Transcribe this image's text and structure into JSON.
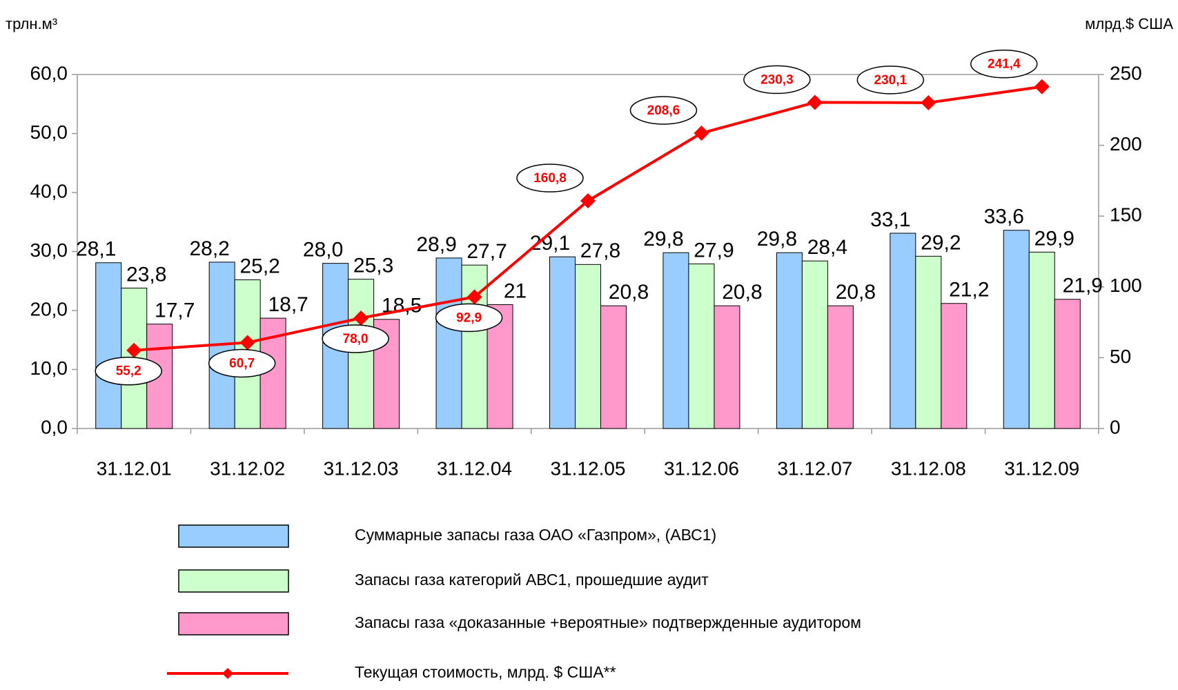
{
  "chart_data": {
    "type": "bar",
    "y_label": "трлн.м³",
    "y2_label": "млрд.$ США",
    "categories": [
      "31.12.01",
      "31.12.02",
      "31.12.03",
      "31.12.04",
      "31.12.05",
      "31.12.06",
      "31.12.07",
      "31.12.08",
      "31.12.09"
    ],
    "series": [
      {
        "name": "Суммарные запасы газа ОАО «Газпром», (АВС1)",
        "color": "#99ccff",
        "values": [
          28.1,
          28.2,
          28.0,
          28.9,
          29.1,
          29.8,
          29.8,
          33.1,
          33.6
        ],
        "value_labels": [
          "28,1",
          "28,2",
          "28,0",
          "28,9",
          "29,1",
          "29,8",
          "29,8",
          "33,1",
          "33,6"
        ]
      },
      {
        "name": "Запасы газа категорий АВС1, прошедшие аудит",
        "color": "#ccffcc",
        "values": [
          23.8,
          25.2,
          25.3,
          27.7,
          27.8,
          27.9,
          28.4,
          29.2,
          29.9
        ],
        "value_labels": [
          "23,8",
          "25,2",
          "25,3",
          "27,7",
          "27,8",
          "27,9",
          "28,4",
          "29,2",
          "29,9"
        ]
      },
      {
        "name": "Запасы газа «доказанные +вероятные» подтвержденные аудитором",
        "color": "#ff99cc",
        "values": [
          17.7,
          18.7,
          18.5,
          21,
          20.8,
          20.8,
          20.8,
          21.2,
          21.9
        ],
        "value_labels": [
          "17,7",
          "18,7",
          "18,5",
          "21",
          "20,8",
          "20,8",
          "20,8",
          "21,2",
          "21,9"
        ]
      },
      {
        "name": "Текущая стоимость, млрд. $ США**",
        "type": "line",
        "axis": "y2",
        "color": "#ff0000",
        "values": [
          55.2,
          60.7,
          78.0,
          92.9,
          160.8,
          208.6,
          230.3,
          230.1,
          241.4
        ],
        "value_labels": [
          "55,2",
          "60,7",
          "78,0",
          "92,9",
          "160,8",
          "208,6",
          "230,3",
          "230,1",
          "241,4"
        ]
      }
    ],
    "ylim": [
      0,
      60
    ],
    "yticks": [
      {
        "value": 0,
        "label": "0,0"
      },
      {
        "value": 10,
        "label": "10,0"
      },
      {
        "value": 20,
        "label": "20,0"
      },
      {
        "value": 30,
        "label": "30,0"
      },
      {
        "value": 40,
        "label": "40,0"
      },
      {
        "value": 50,
        "label": "50,0"
      },
      {
        "value": 60,
        "label": "60,0"
      }
    ],
    "y2lim": [
      0,
      250
    ],
    "y2ticks": [
      0,
      50,
      100,
      150,
      200,
      250
    ],
    "legend": "bottom"
  }
}
